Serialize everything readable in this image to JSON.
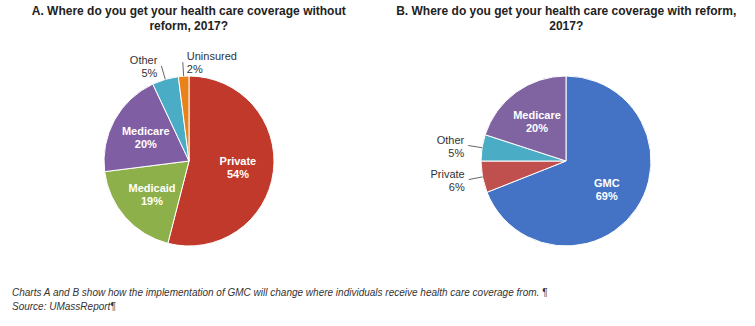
{
  "chart_data": [
    {
      "type": "pie",
      "title": "A. Where do you get your health care coverage without reform, 2017?",
      "categories": [
        "Private",
        "Medicaid",
        "Medicare",
        "Other",
        "Uninsured"
      ],
      "values": [
        54,
        19,
        20,
        5,
        2
      ],
      "value_labels": [
        "54%",
        "19%",
        "20%",
        "5%",
        "2%"
      ],
      "data_labels": true,
      "colors": [
        "#C0392B",
        "#8DB04A",
        "#7F5EA3",
        "#4BACC6",
        "#E8821A"
      ]
    },
    {
      "type": "pie",
      "title": "B. Where do you get your health care coverage with reform, 2017?",
      "categories": [
        "GMC",
        "Private",
        "Other",
        "Medicare"
      ],
      "values": [
        69,
        6,
        5,
        20
      ],
      "value_labels": [
        "69%",
        "6%",
        "5%",
        "20%"
      ],
      "data_labels": true,
      "colors": [
        "#4472C4",
        "#C0504D",
        "#4BACC6",
        "#8064A2"
      ]
    }
  ],
  "annotations": [
    "Charts A and B show how the implementation of GMC will change where individuals receive health care coverage from. ¶",
    "Source: UMassReport¶"
  ]
}
